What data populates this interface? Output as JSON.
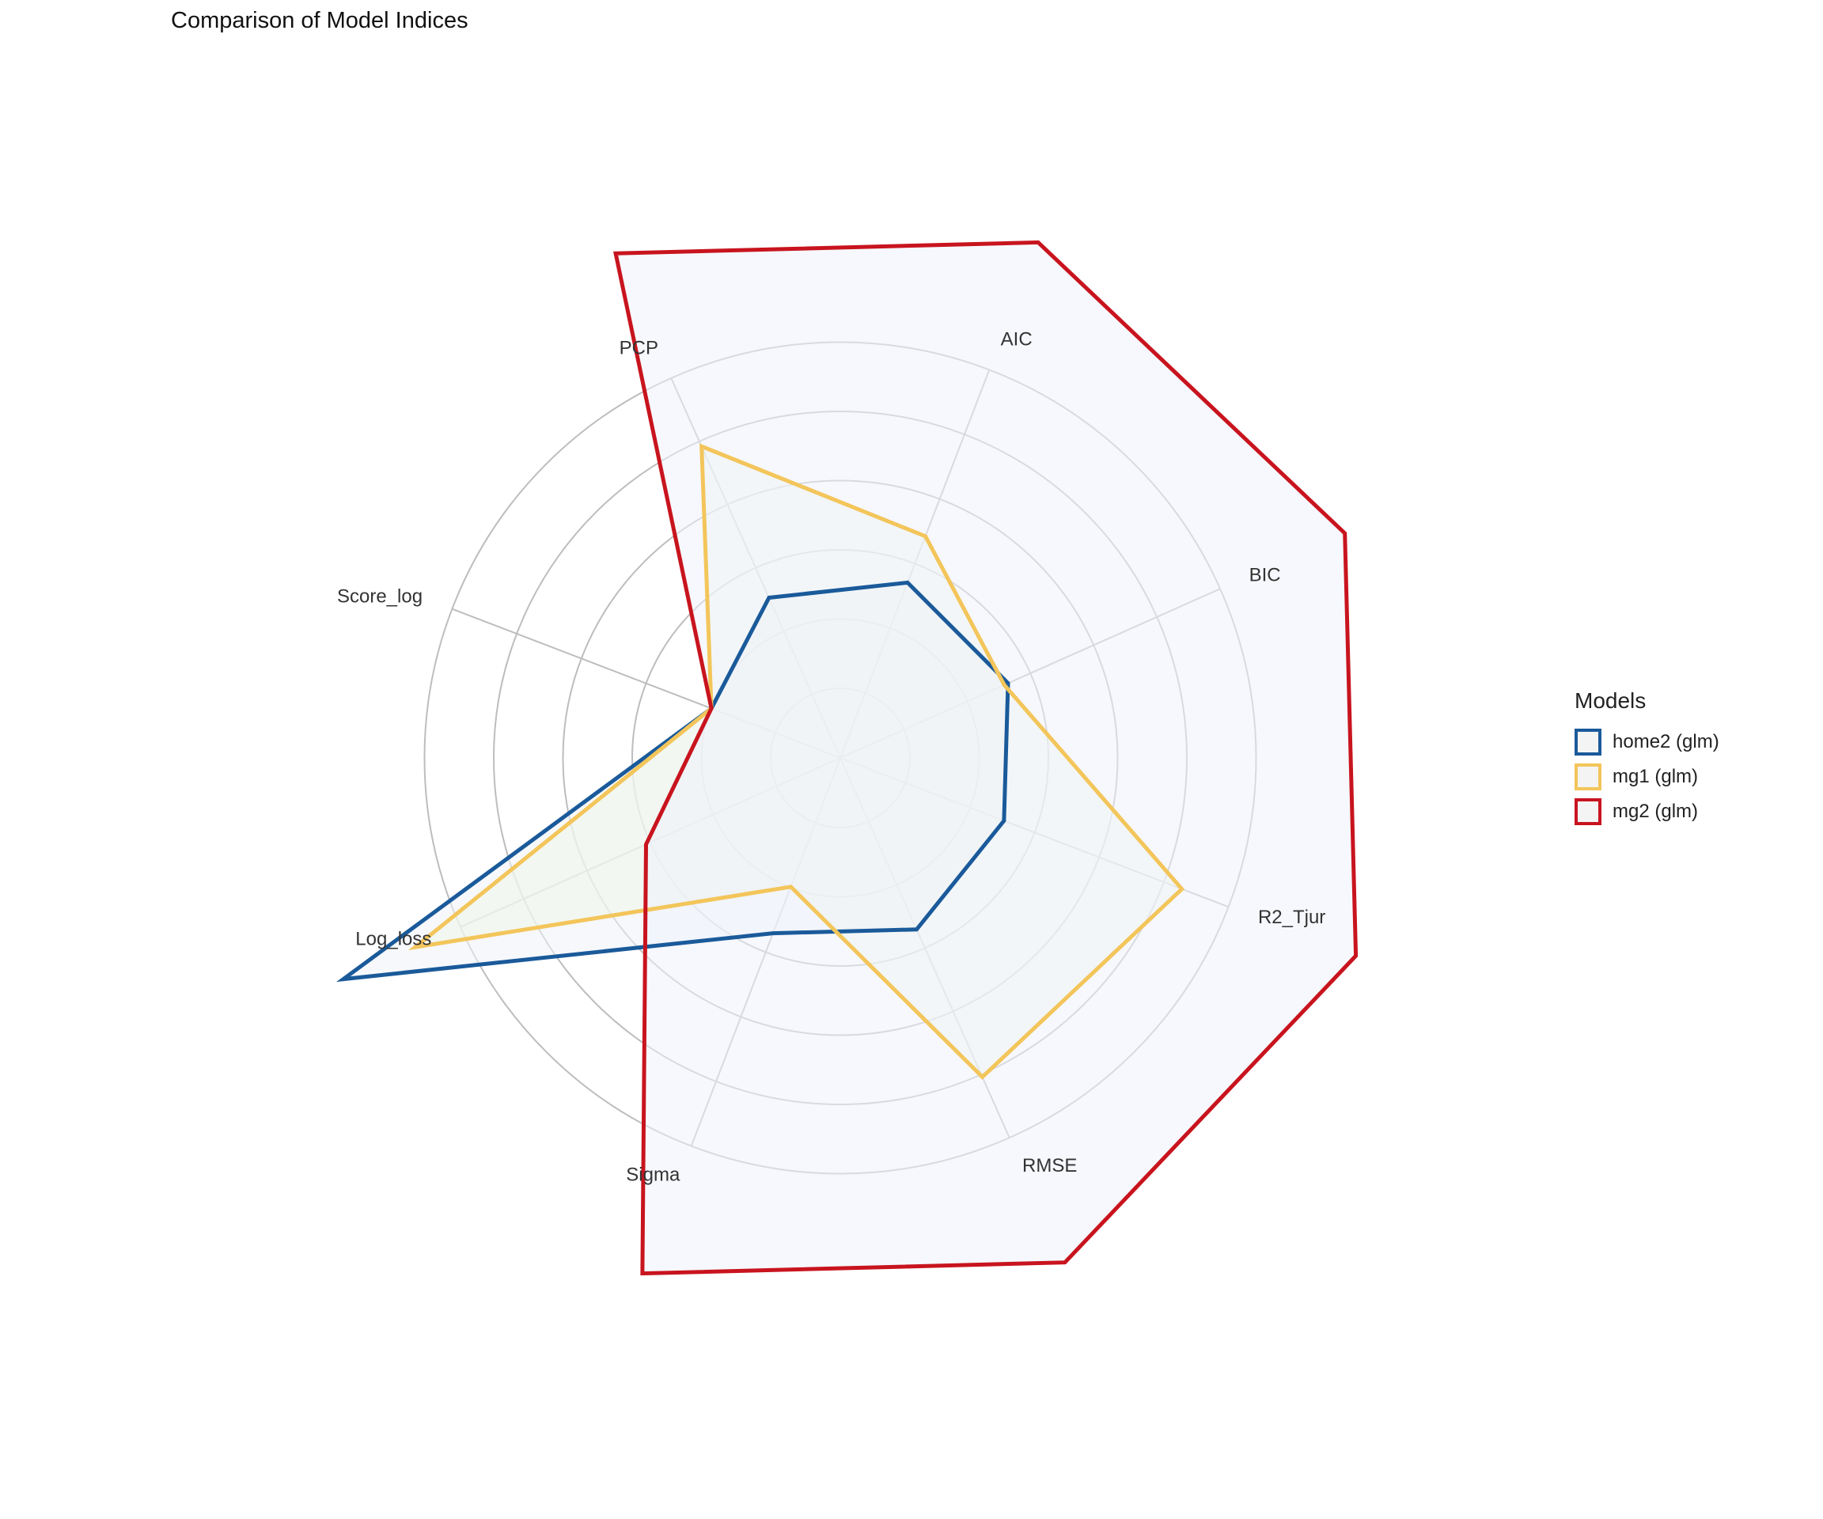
{
  "title": "Comparison of Model Indices",
  "chart_data": {
    "type": "radar",
    "title": "Comparison of Model Indices",
    "axes": [
      "AIC",
      "BIC",
      "R2_Tjur",
      "RMSE",
      "Sigma",
      "Log_loss",
      "Score_log",
      "PCP"
    ],
    "rlim": [
      0,
      1
    ],
    "grid": true,
    "legend_title": "Models",
    "legend_position": "right",
    "series": [
      {
        "name": "home2 (glm)",
        "color": "#1a5a9a",
        "fill": "#eef2f8",
        "values": [
          0.12,
          0.11,
          0.09,
          0.12,
          0.12,
          0.98,
          0.0,
          0.09
        ]
      },
      {
        "name": "mg1 (glm)",
        "color": "#f3c55a",
        "fill": "#eef6ea",
        "values": [
          0.24,
          0.1,
          0.55,
          0.51,
          0.0,
          0.79,
          0.0,
          0.49
        ]
      },
      {
        "name": "mg2 (glm)",
        "color": "#c8141e",
        "fill": "#eef3fb",
        "values": [
          1.0,
          1.0,
          1.0,
          1.0,
          1.0,
          0.18,
          0.0,
          1.0
        ]
      }
    ]
  }
}
